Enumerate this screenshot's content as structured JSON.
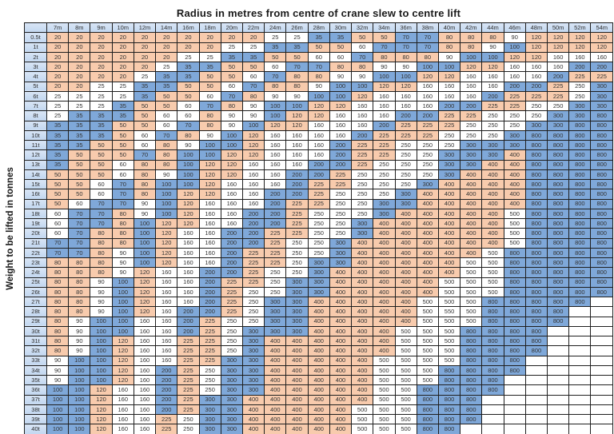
{
  "chart_data": {
    "type": "table",
    "title": "Radius in metres from centre of crane slew to centre lift",
    "y_axis_label": "Weight to be lifted in tonnes",
    "column_headers": [
      "7m",
      "8m",
      "9m",
      "10m",
      "12m",
      "14m",
      "16m",
      "18m",
      "20m",
      "22m",
      "24m",
      "26m",
      "28m",
      "30m",
      "32m",
      "34m",
      "36m",
      "38m",
      "40m",
      "42m",
      "44m",
      "46m",
      "48m",
      "50m",
      "52m",
      "54m"
    ],
    "row_headers": [
      "0.5t",
      "1t",
      "2t",
      "3t",
      "4t",
      "5t",
      "6t",
      "7t",
      "8t",
      "9t",
      "10t",
      "11t",
      "12t",
      "13t",
      "14t",
      "15t",
      "16t",
      "17t",
      "18t",
      "19t",
      "20t",
      "21t",
      "22t",
      "23t",
      "24t",
      "25t",
      "26t",
      "27t",
      "28t",
      "29t",
      "30t",
      "31t",
      "32t",
      "33t",
      "34t",
      "35t",
      "36t",
      "37t",
      "38t",
      "39t",
      "40t"
    ],
    "grid": [
      [
        20,
        20,
        20,
        20,
        20,
        20,
        20,
        20,
        20,
        20,
        25,
        25,
        35,
        35,
        50,
        50,
        70,
        70,
        80,
        80,
        80,
        90,
        120,
        120,
        120,
        120
      ],
      [
        20,
        20,
        20,
        20,
        20,
        20,
        20,
        20,
        25,
        25,
        35,
        35,
        50,
        50,
        60,
        70,
        70,
        70,
        80,
        80,
        90,
        100,
        120,
        120,
        120,
        120
      ],
      [
        20,
        20,
        20,
        20,
        20,
        20,
        25,
        25,
        35,
        35,
        50,
        50,
        60,
        60,
        70,
        80,
        80,
        80,
        90,
        100,
        100,
        120,
        120,
        160,
        160,
        160
      ],
      [
        20,
        20,
        20,
        20,
        20,
        25,
        35,
        35,
        50,
        50,
        60,
        70,
        70,
        80,
        80,
        90,
        90,
        100,
        100,
        120,
        120,
        160,
        160,
        160,
        200,
        200
      ],
      [
        20,
        20,
        20,
        20,
        25,
        35,
        35,
        50,
        50,
        60,
        70,
        80,
        80,
        90,
        90,
        100,
        100,
        120,
        120,
        160,
        160,
        160,
        160,
        200,
        225,
        225
      ],
      [
        20,
        20,
        25,
        25,
        35,
        35,
        50,
        50,
        60,
        70,
        80,
        80,
        90,
        100,
        100,
        120,
        120,
        160,
        160,
        160,
        160,
        200,
        200,
        225,
        250,
        300
      ],
      [
        25,
        25,
        25,
        25,
        35,
        50,
        50,
        60,
        70,
        80,
        90,
        90,
        100,
        100,
        120,
        160,
        160,
        160,
        160,
        160,
        200,
        225,
        225,
        225,
        250,
        300
      ],
      [
        25,
        25,
        25,
        35,
        50,
        50,
        60,
        70,
        80,
        90,
        100,
        100,
        120,
        120,
        160,
        160,
        160,
        160,
        200,
        200,
        225,
        225,
        250,
        250,
        300,
        300
      ],
      [
        25,
        35,
        35,
        35,
        50,
        60,
        60,
        80,
        90,
        90,
        100,
        120,
        120,
        160,
        160,
        160,
        200,
        200,
        225,
        225,
        250,
        250,
        250,
        300,
        300,
        800
      ],
      [
        35,
        35,
        35,
        50,
        50,
        60,
        70,
        80,
        90,
        100,
        120,
        120,
        160,
        160,
        160,
        200,
        225,
        225,
        225,
        250,
        250,
        250,
        300,
        300,
        800,
        800
      ],
      [
        35,
        35,
        35,
        50,
        60,
        70,
        80,
        90,
        100,
        120,
        160,
        160,
        160,
        160,
        200,
        225,
        225,
        225,
        250,
        250,
        250,
        300,
        800,
        800,
        800,
        800
      ],
      [
        35,
        35,
        50,
        50,
        60,
        80,
        90,
        100,
        100,
        120,
        160,
        160,
        160,
        200,
        225,
        225,
        250,
        250,
        250,
        300,
        300,
        300,
        800,
        800,
        800,
        800
      ],
      [
        35,
        50,
        50,
        50,
        70,
        80,
        100,
        100,
        120,
        120,
        160,
        160,
        160,
        200,
        225,
        225,
        250,
        250,
        300,
        300,
        300,
        400,
        800,
        800,
        800,
        800
      ],
      [
        35,
        50,
        50,
        60,
        80,
        80,
        100,
        120,
        120,
        160,
        160,
        160,
        200,
        200,
        225,
        250,
        250,
        250,
        300,
        300,
        400,
        400,
        800,
        800,
        800,
        800
      ],
      [
        50,
        50,
        50,
        60,
        80,
        90,
        100,
        120,
        120,
        160,
        160,
        200,
        200,
        225,
        250,
        250,
        250,
        250,
        300,
        400,
        400,
        400,
        800,
        800,
        800,
        800
      ],
      [
        50,
        50,
        60,
        70,
        80,
        100,
        100,
        120,
        160,
        160,
        160,
        200,
        225,
        225,
        250,
        250,
        250,
        300,
        400,
        400,
        400,
        400,
        800,
        800,
        800,
        800
      ],
      [
        50,
        50,
        60,
        70,
        80,
        100,
        120,
        120,
        160,
        160,
        200,
        200,
        225,
        250,
        250,
        250,
        300,
        400,
        400,
        400,
        400,
        400,
        800,
        800,
        800,
        800
      ],
      [
        50,
        60,
        70,
        70,
        90,
        100,
        120,
        160,
        160,
        160,
        200,
        225,
        225,
        250,
        250,
        300,
        300,
        400,
        400,
        400,
        400,
        400,
        800,
        800,
        800,
        800
      ],
      [
        60,
        70,
        70,
        80,
        90,
        100,
        120,
        160,
        160,
        200,
        200,
        225,
        250,
        250,
        250,
        300,
        400,
        400,
        400,
        400,
        400,
        500,
        800,
        800,
        800,
        800
      ],
      [
        60,
        70,
        70,
        80,
        100,
        120,
        120,
        160,
        160,
        200,
        200,
        225,
        250,
        250,
        300,
        400,
        400,
        400,
        400,
        400,
        400,
        500,
        800,
        800,
        800,
        800
      ],
      [
        60,
        70,
        80,
        80,
        100,
        120,
        160,
        160,
        200,
        200,
        225,
        225,
        250,
        250,
        300,
        400,
        400,
        400,
        400,
        400,
        400,
        500,
        800,
        800,
        800,
        800
      ],
      [
        70,
        70,
        80,
        80,
        100,
        120,
        160,
        160,
        200,
        200,
        225,
        250,
        250,
        300,
        400,
        400,
        400,
        400,
        400,
        400,
        400,
        500,
        800,
        800,
        800,
        800
      ],
      [
        70,
        70,
        80,
        90,
        100,
        120,
        160,
        160,
        200,
        225,
        225,
        250,
        250,
        300,
        400,
        400,
        400,
        400,
        400,
        400,
        500,
        800,
        800,
        800,
        800,
        800
      ],
      [
        80,
        80,
        80,
        90,
        100,
        120,
        160,
        160,
        200,
        225,
        225,
        250,
        300,
        300,
        400,
        400,
        400,
        400,
        400,
        500,
        500,
        800,
        800,
        800,
        800,
        800
      ],
      [
        80,
        80,
        80,
        90,
        120,
        160,
        160,
        200,
        200,
        225,
        250,
        250,
        300,
        400,
        400,
        400,
        400,
        400,
        400,
        500,
        500,
        800,
        800,
        800,
        800,
        800
      ],
      [
        80,
        80,
        90,
        100,
        120,
        160,
        160,
        200,
        225,
        225,
        250,
        300,
        300,
        400,
        400,
        400,
        400,
        400,
        500,
        500,
        500,
        800,
        800,
        800,
        800,
        800
      ],
      [
        80,
        80,
        90,
        100,
        120,
        160,
        160,
        200,
        225,
        250,
        250,
        300,
        300,
        400,
        400,
        400,
        400,
        400,
        500,
        500,
        500,
        800,
        800,
        800,
        800,
        800
      ],
      [
        80,
        80,
        90,
        100,
        120,
        160,
        160,
        200,
        225,
        250,
        300,
        300,
        400,
        400,
        400,
        400,
        400,
        500,
        500,
        500,
        800,
        800,
        800,
        800,
        800,
        null
      ],
      [
        80,
        80,
        90,
        100,
        120,
        160,
        200,
        200,
        225,
        250,
        300,
        300,
        400,
        400,
        400,
        400,
        400,
        500,
        550,
        500,
        800,
        800,
        800,
        800,
        null,
        null
      ],
      [
        80,
        90,
        100,
        100,
        160,
        160,
        200,
        225,
        250,
        250,
        300,
        300,
        400,
        400,
        400,
        400,
        400,
        500,
        500,
        500,
        800,
        800,
        800,
        800,
        null,
        null
      ],
      [
        80,
        90,
        100,
        100,
        160,
        160,
        200,
        225,
        250,
        300,
        300,
        300,
        400,
        400,
        400,
        400,
        500,
        500,
        500,
        800,
        800,
        800,
        800,
        null,
        null,
        null
      ],
      [
        80,
        90,
        100,
        120,
        160,
        160,
        225,
        225,
        250,
        300,
        400,
        400,
        400,
        400,
        400,
        400,
        500,
        500,
        500,
        800,
        800,
        800,
        800,
        null,
        null,
        null
      ],
      [
        80,
        90,
        100,
        120,
        160,
        160,
        225,
        225,
        250,
        300,
        400,
        400,
        400,
        400,
        400,
        400,
        500,
        500,
        500,
        800,
        800,
        800,
        800,
        null,
        null,
        null
      ],
      [
        90,
        100,
        100,
        120,
        160,
        160,
        225,
        225,
        300,
        300,
        400,
        400,
        400,
        400,
        400,
        500,
        500,
        500,
        500,
        800,
        800,
        800,
        null,
        null,
        null,
        null
      ],
      [
        90,
        100,
        100,
        120,
        160,
        200,
        225,
        250,
        300,
        300,
        400,
        400,
        400,
        400,
        400,
        500,
        500,
        500,
        800,
        800,
        800,
        800,
        null,
        null,
        null,
        null
      ],
      [
        90,
        100,
        100,
        120,
        160,
        200,
        225,
        250,
        300,
        300,
        400,
        400,
        400,
        400,
        400,
        500,
        500,
        500,
        800,
        800,
        800,
        null,
        null,
        null,
        null,
        null
      ],
      [
        100,
        100,
        120,
        160,
        160,
        200,
        225,
        250,
        300,
        300,
        400,
        400,
        400,
        400,
        400,
        500,
        500,
        800,
        800,
        800,
        800,
        null,
        null,
        null,
        null,
        null
      ],
      [
        100,
        100,
        120,
        160,
        160,
        200,
        225,
        300,
        300,
        400,
        400,
        400,
        400,
        400,
        400,
        500,
        500,
        800,
        800,
        800,
        null,
        null,
        null,
        null,
        null,
        null
      ],
      [
        100,
        100,
        120,
        160,
        160,
        200,
        225,
        300,
        300,
        400,
        400,
        400,
        400,
        400,
        500,
        500,
        500,
        800,
        800,
        800,
        null,
        null,
        null,
        null,
        null,
        null
      ],
      [
        100,
        100,
        120,
        160,
        160,
        225,
        250,
        300,
        300,
        400,
        400,
        400,
        400,
        400,
        500,
        500,
        500,
        800,
        800,
        800,
        null,
        null,
        null,
        null,
        null,
        null
      ],
      [
        100,
        100,
        120,
        160,
        160,
        225,
        250,
        300,
        300,
        400,
        400,
        400,
        400,
        400,
        500,
        500,
        500,
        800,
        800,
        null,
        null,
        null,
        null,
        null,
        null,
        null
      ]
    ],
    "cell_color_by_value": {
      "20": "orange",
      "25": "white",
      "35": "blue",
      "50": "orange",
      "60": "white",
      "70": "blue",
      "80": "orange",
      "90": "white",
      "100": "blue",
      "120": "orange",
      "160": "white",
      "200": "blue",
      "225": "orange",
      "250": "white",
      "300": "blue",
      "400": "orange",
      "500": "white",
      "550": "white",
      "800": "blue"
    },
    "colors": {
      "orange": "#F8CBAD",
      "blue": "#7FA8D9",
      "white": "#FFFFFF",
      "header_blue": "#C5D9F1",
      "border": "#1F1F1F"
    }
  }
}
